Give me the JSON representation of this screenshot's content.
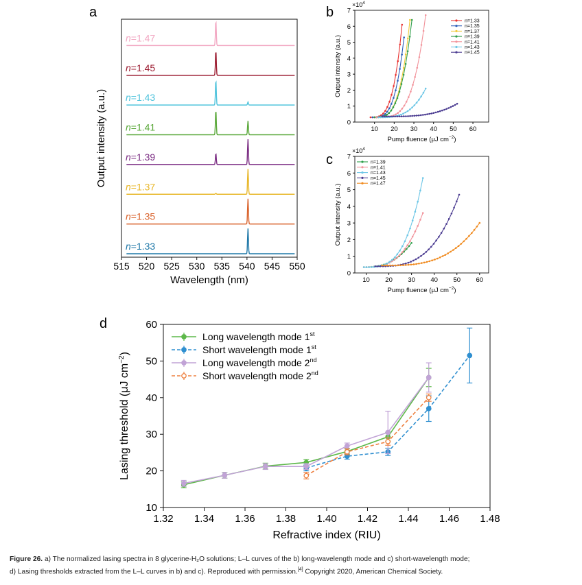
{
  "caption": {
    "label": "Figure 26.",
    "line1": "a) The normalized lasing spectra in 8 glycerine-H₂O solutions; L–L curves of the b) long-wavelength mode and c) short-wavelength mode;",
    "line2": "d) Lasing thresholds extracted from the L–L curves in b) and c). Reproduced with permission.",
    "ref": "[4]",
    "line2_end": " Copyright 2020, American Chemical Society."
  },
  "chart_data": [
    {
      "panel": "a",
      "type": "line",
      "xlabel": "Wavelength (nm)",
      "ylabel": "Output intensity (a.u.)",
      "xlim": [
        515,
        550
      ],
      "xticks": [
        515,
        520,
        525,
        530,
        535,
        540,
        545,
        550
      ],
      "series": [
        {
          "name": "n=1.47",
          "prefix": "n",
          "value": "=1.47",
          "color": "#f2a7c2",
          "peaks": [
            [
              533.8,
              1.0
            ],
            [
              540.2,
              0.0
            ]
          ]
        },
        {
          "name": "n=1.45",
          "prefix": "n",
          "value": "=1.45",
          "color": "#9b1b30",
          "peaks": [
            [
              533.8,
              1.0
            ],
            [
              540.2,
              0.0
            ]
          ]
        },
        {
          "name": "n=1.43",
          "prefix": "n",
          "value": "=1.43",
          "color": "#4fc3dc",
          "peaks": [
            [
              533.8,
              1.0
            ],
            [
              540.2,
              0.12
            ]
          ]
        },
        {
          "name": "n=1.41",
          "prefix": "n",
          "value": "=1.41",
          "color": "#5aa83a",
          "peaks": [
            [
              533.8,
              1.0
            ],
            [
              540.2,
              0.55
            ]
          ]
        },
        {
          "name": "n=1.39",
          "prefix": "n",
          "value": "=1.39",
          "color": "#7b2d83",
          "peaks": [
            [
              533.8,
              0.45
            ],
            [
              540.2,
              1.0
            ]
          ]
        },
        {
          "name": "n=1.37",
          "prefix": "n",
          "value": "=1.37",
          "color": "#e8b72a",
          "peaks": [
            [
              533.8,
              0.04
            ],
            [
              540.2,
              1.0
            ]
          ]
        },
        {
          "name": "n=1.35",
          "prefix": "n",
          "value": "=1.35",
          "color": "#d9622b",
          "peaks": [
            [
              533.8,
              0.0
            ],
            [
              540.2,
              1.0
            ]
          ]
        },
        {
          "name": "n=1.33",
          "prefix": "n",
          "value": "=1.33",
          "color": "#1f78a8",
          "peaks": [
            [
              533.8,
              0.0
            ],
            [
              540.2,
              1.0
            ]
          ]
        }
      ]
    },
    {
      "panel": "b",
      "type": "line",
      "xlabel": "Pump fluence (μJ cm",
      "xlabel_sup": "−2",
      "xlabel_end": ")",
      "ylabel": "Output intensity (a.u.)",
      "multiplier": "×10",
      "multiplier_sup": "4",
      "xlim": [
        0,
        68
      ],
      "ylim": [
        0,
        7
      ],
      "xticks": [
        10,
        20,
        30,
        40,
        50,
        60
      ],
      "yticks": [
        0,
        1,
        2,
        3,
        4,
        5,
        6,
        7
      ],
      "legend_position": "top-right",
      "series": [
        {
          "name": "n=1.33",
          "color": "#e8302f",
          "start": [
            8,
            0.3
          ],
          "end": [
            24,
            6.1
          ],
          "exp": 3.5,
          "count": 16
        },
        {
          "name": "n=1.35",
          "color": "#2a5cb8",
          "start": [
            9,
            0.3
          ],
          "end": [
            25,
            5.3
          ],
          "exp": 3.5,
          "count": 16
        },
        {
          "name": "n=1.37",
          "color": "#f0c93a",
          "start": [
            10,
            0.3
          ],
          "end": [
            28,
            6.4
          ],
          "exp": 3.5,
          "count": 18
        },
        {
          "name": "n=1.39",
          "color": "#2f9e4a",
          "start": [
            10,
            0.3
          ],
          "end": [
            29,
            6.4
          ],
          "exp": 3.3,
          "count": 19
        },
        {
          "name": "n=1.41",
          "color": "#f2939b",
          "start": [
            11,
            0.3
          ],
          "end": [
            36,
            6.7
          ],
          "exp": 3.8,
          "count": 24
        },
        {
          "name": "n=1.43",
          "color": "#6cc6e6",
          "start": [
            12,
            0.3
          ],
          "end": [
            36,
            2.1
          ],
          "exp": 3.2,
          "count": 22
        },
        {
          "name": "n=1.45",
          "color": "#4b3c91",
          "start": [
            14,
            0.35
          ],
          "end": [
            52,
            1.15
          ],
          "exp": 3.4,
          "count": 36
        }
      ]
    },
    {
      "panel": "c",
      "type": "line",
      "xlabel": "Pump fluence (μJ cm",
      "xlabel_sup": "−2",
      "xlabel_end": ")",
      "ylabel": "Output intensity (a.u.)",
      "multiplier": "×10",
      "multiplier_sup": "4",
      "xlim": [
        5,
        64
      ],
      "ylim": [
        0,
        7
      ],
      "xticks": [
        10,
        20,
        30,
        40,
        50,
        60
      ],
      "yticks": [
        0,
        1,
        2,
        3,
        4,
        5,
        6,
        7
      ],
      "legend_position": "top-left",
      "series": [
        {
          "name": "n=1.39",
          "color": "#2f9e4a",
          "start": [
            9,
            0.35
          ],
          "end": [
            30,
            1.8
          ],
          "exp": 2.6,
          "count": 20
        },
        {
          "name": "n=1.41",
          "color": "#f2939b",
          "start": [
            9,
            0.35
          ],
          "end": [
            35,
            3.6
          ],
          "exp": 3.0,
          "count": 24
        },
        {
          "name": "n=1.43",
          "color": "#6cc6e6",
          "start": [
            9,
            0.35
          ],
          "end": [
            35,
            5.7
          ],
          "exp": 3.4,
          "count": 24
        },
        {
          "name": "n=1.45",
          "color": "#4b3c91",
          "start": [
            14,
            0.4
          ],
          "end": [
            51,
            4.7
          ],
          "exp": 3.2,
          "count": 34
        },
        {
          "name": "n=1.47",
          "color": "#f08a1e",
          "start": [
            17,
            0.45
          ],
          "end": [
            60,
            3.0
          ],
          "exp": 3.2,
          "count": 38
        }
      ]
    },
    {
      "panel": "d",
      "type": "line",
      "xlabel": "Refractive index (RIU)",
      "ylabel": "Lasing threshold (μJ cm",
      "ylabel_sup": "−2",
      "ylabel_end": ")",
      "xlim": [
        1.32,
        1.48
      ],
      "ylim": [
        10,
        60
      ],
      "xticks": [
        "1.32",
        "1.34",
        "1.36",
        "1.38",
        "1.40",
        "1.42",
        "1.44",
        "1.46",
        "1.48"
      ],
      "yticks": [
        10,
        20,
        30,
        40,
        50,
        60
      ],
      "legend_position": "top-left",
      "series": [
        {
          "name": "Long wavelength mode 1",
          "sup": "st",
          "color": "#5db84a",
          "dash": false,
          "marker": "filled",
          "x": [
            1.33,
            1.35,
            1.37,
            1.39,
            1.41,
            1.43,
            1.45
          ],
          "y": [
            16.2,
            18.8,
            21.3,
            22.3,
            25.3,
            29.3,
            45.5
          ],
          "err": [
            0.8,
            0.8,
            0.8,
            0.8,
            0.8,
            1.2,
            2.5
          ]
        },
        {
          "name": "Short wavelength mode 1",
          "sup": "st",
          "color": "#2f8fd0",
          "dash": true,
          "marker": "filled",
          "x": [
            1.39,
            1.41,
            1.43,
            1.45,
            1.47
          ],
          "y": [
            20.8,
            24.0,
            25.2,
            37.0,
            51.5
          ],
          "err": [
            0.8,
            0.8,
            1.0,
            3.5,
            7.5
          ]
        },
        {
          "name": "Long wavelength mode 2",
          "sup": "nd",
          "color": "#c1a3d6",
          "dash": false,
          "marker": "filled",
          "x": [
            1.33,
            1.35,
            1.37,
            1.39,
            1.41,
            1.43,
            1.45
          ],
          "y": [
            16.6,
            18.8,
            21.2,
            21.2,
            26.8,
            30.5,
            45.5
          ],
          "err": [
            0.8,
            0.8,
            0.8,
            0.8,
            0.8,
            5.8,
            4.0
          ]
        },
        {
          "name": "Short wavelength mode 2",
          "sup": "nd",
          "color": "#ee8040",
          "dash": true,
          "marker": "open",
          "x": [
            1.39,
            1.41,
            1.43,
            1.45
          ],
          "y": [
            18.7,
            25.2,
            28.0,
            40.0
          ],
          "err": [
            0.9,
            0.8,
            1.0,
            1.0
          ]
        }
      ]
    }
  ]
}
